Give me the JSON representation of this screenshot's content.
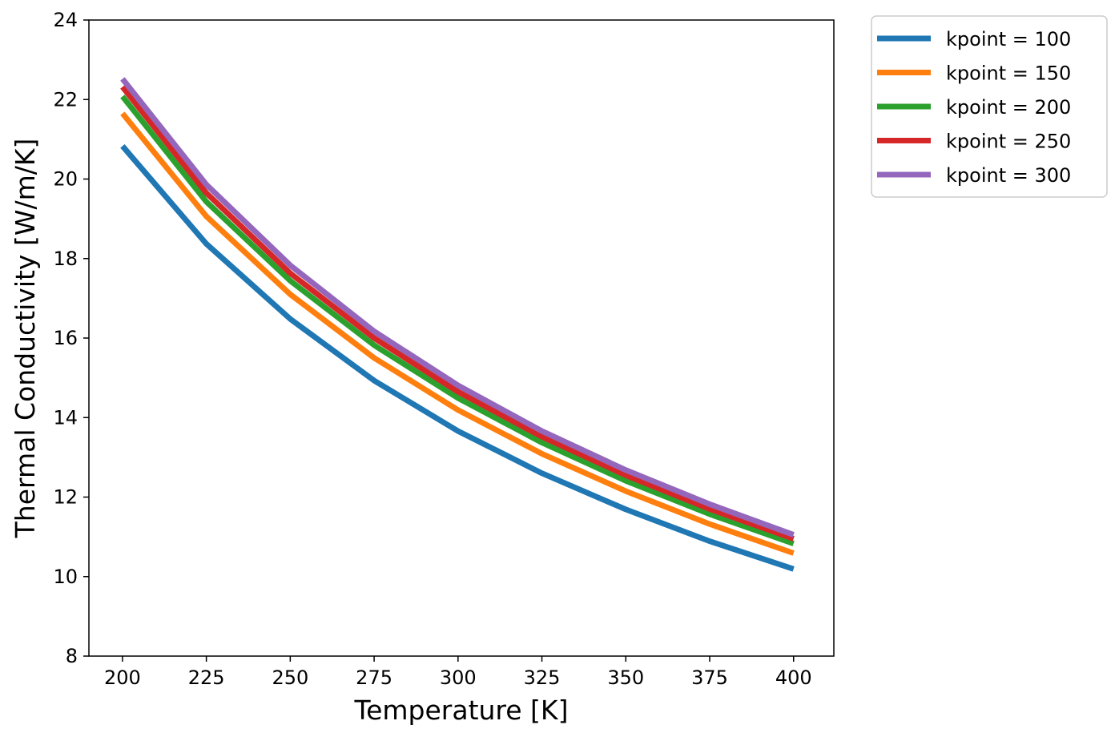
{
  "chart_data": {
    "type": "line",
    "xlabel": "Temperature [K]",
    "ylabel": "Thermal Conductivity [W/m/K]",
    "x": [
      200,
      225,
      250,
      275,
      300,
      325,
      350,
      375,
      400
    ],
    "xlim": [
      190,
      412
    ],
    "ylim": [
      8,
      24
    ],
    "xticks": [
      "200",
      "225",
      "250",
      "275",
      "300",
      "325",
      "350",
      "375",
      "400"
    ],
    "yticks": [
      "8",
      "10",
      "12",
      "14",
      "16",
      "18",
      "20",
      "22",
      "24"
    ],
    "grid": false,
    "legend_position": "outside upper right",
    "series": [
      {
        "name": "kpoint = 100",
        "color": "#1f77b4",
        "values": [
          20.83,
          18.37,
          16.48,
          14.93,
          13.66,
          12.6,
          11.69,
          10.89,
          10.19
        ]
      },
      {
        "name": "kpoint = 150",
        "color": "#ff7f0e",
        "values": [
          21.65,
          19.06,
          17.1,
          15.5,
          14.19,
          13.09,
          12.15,
          11.32,
          10.59
        ]
      },
      {
        "name": "kpoint = 200",
        "color": "#2ca02c",
        "values": [
          22.08,
          19.43,
          17.44,
          15.82,
          14.49,
          13.37,
          12.41,
          11.57,
          10.83
        ]
      },
      {
        "name": "kpoint = 250",
        "color": "#d62728",
        "values": [
          22.32,
          19.65,
          17.63,
          16.0,
          14.65,
          13.52,
          12.55,
          11.7,
          10.95
        ]
      },
      {
        "name": "kpoint = 300",
        "color": "#9467bd",
        "values": [
          22.52,
          19.86,
          17.83,
          16.17,
          14.81,
          13.66,
          12.68,
          11.82,
          11.05
        ]
      }
    ]
  }
}
